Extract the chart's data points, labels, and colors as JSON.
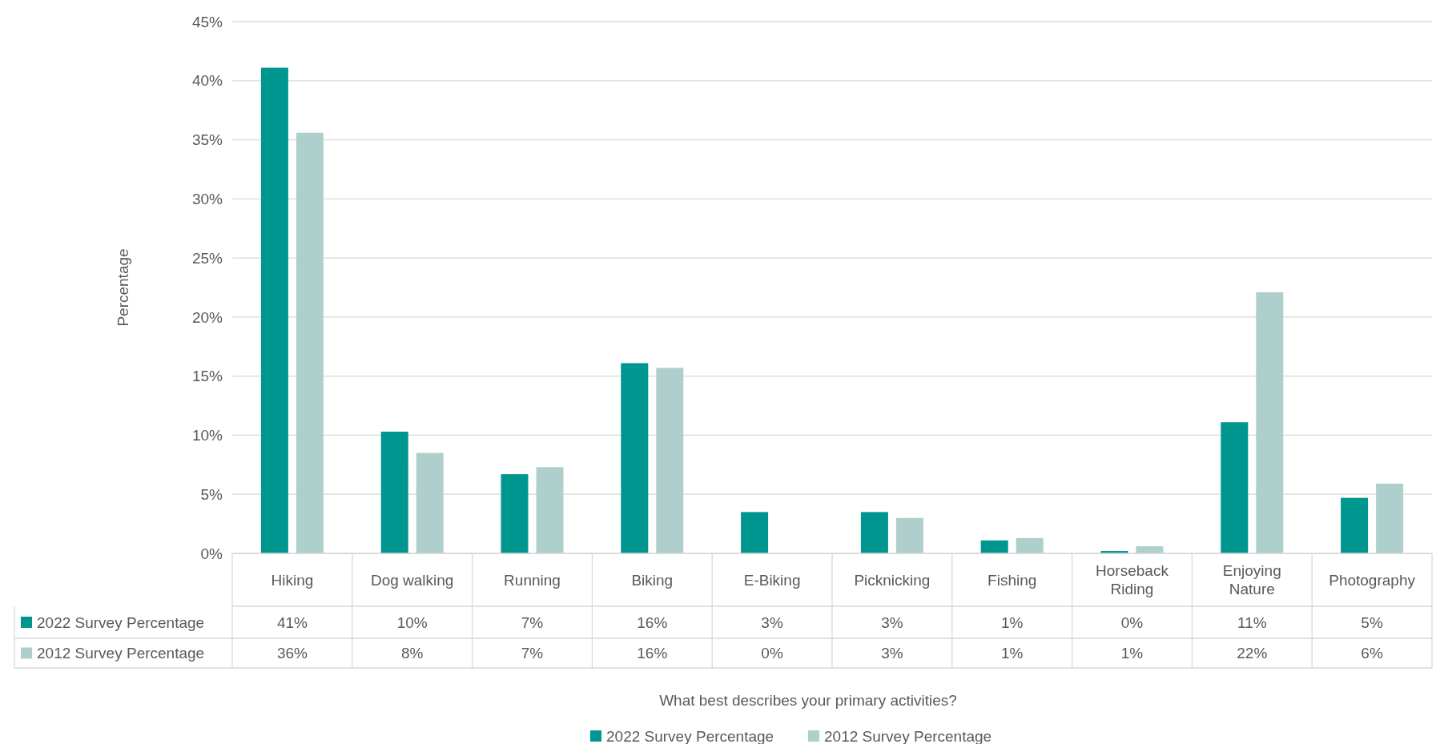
{
  "chart_data": {
    "type": "bar",
    "ylabel": "Percentage",
    "annotations": [
      "What best describes your primary activities?"
    ],
    "categories": [
      "Hiking",
      "Dog walking",
      "Running",
      "Biking",
      "E-Biking",
      "Picknicking",
      "Fishing",
      "Horseback Riding",
      "Enjoying Nature",
      "Photography"
    ],
    "series": [
      {
        "name": "2022 Survey Percentage",
        "color": "#009690",
        "values": [
          41.1,
          10.3,
          6.7,
          16.1,
          3.5,
          3.5,
          1.1,
          0.2,
          11.1,
          4.7
        ],
        "value_labels": [
          "41%",
          "10%",
          "7%",
          "16%",
          "3%",
          "3%",
          "1%",
          "0%",
          "11%",
          "5%"
        ]
      },
      {
        "name": "2012 Survey Percentage",
        "color": "#aecfcc",
        "values": [
          35.6,
          8.5,
          7.3,
          15.7,
          0,
          3.0,
          1.3,
          0.6,
          22.1,
          5.9
        ],
        "value_labels": [
          "36%",
          "8%",
          "7%",
          "16%",
          "0%",
          "3%",
          "1%",
          "1%",
          "22%",
          "6%"
        ]
      }
    ],
    "ylim": [
      0,
      45
    ],
    "yticks": [
      {
        "value": 0,
        "label": "0%"
      },
      {
        "value": 5,
        "label": "5%"
      },
      {
        "value": 10,
        "label": "10%"
      },
      {
        "value": 15,
        "label": "15%"
      },
      {
        "value": 20,
        "label": "20%"
      },
      {
        "value": 25,
        "label": "25%"
      },
      {
        "value": 30,
        "label": "30%"
      },
      {
        "value": 35,
        "label": "35%"
      },
      {
        "value": 40,
        "label": "40%"
      },
      {
        "value": 45,
        "label": "45%"
      }
    ],
    "grid": "y",
    "legend": "bottom"
  }
}
